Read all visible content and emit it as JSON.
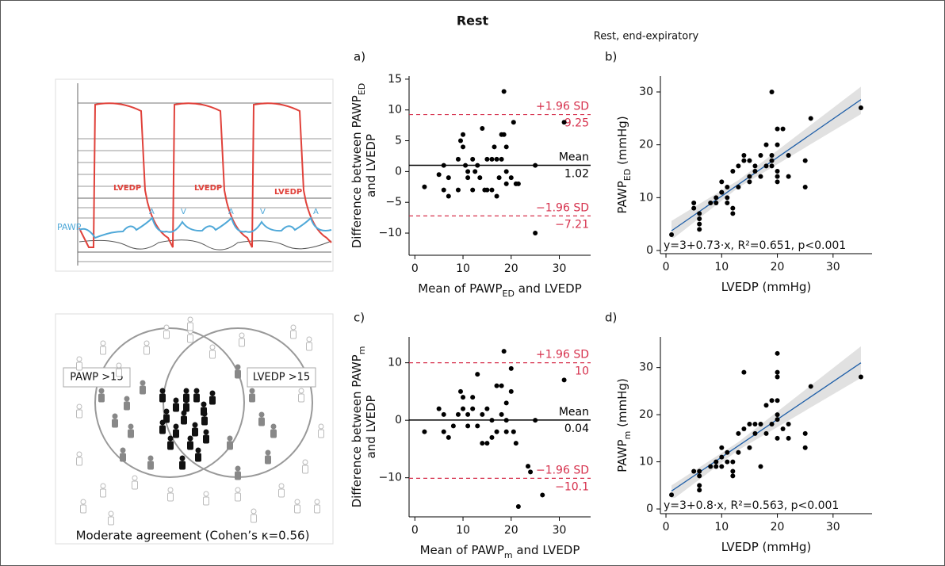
{
  "figure": {
    "title": "Rest",
    "subtitle": "Rest, end-expiratory"
  },
  "tracing": {
    "pawp_label": "PAWP",
    "lvedp_label": "LVEDP",
    "a_label": "A",
    "v_label": "V"
  },
  "venn": {
    "left_label": "PAWP >15",
    "right_label": "LVEDP >15",
    "caption": "Moderate agreement (Cohen’s κ=0.56)"
  },
  "chart_data": [
    {
      "type": "scatter",
      "panel_label": "a)",
      "xlabel": [
        [
          "Mean of PAWP",
          "ED",
          " and LVEDP"
        ]
      ],
      "ylabel": [
        [
          "Difference between PAWP",
          "ED"
        ],
        [
          "and LVEDP"
        ]
      ],
      "xlim": [
        -1.2,
        36.5
      ],
      "ylim": [
        -13.6,
        15.5
      ],
      "xticks": [
        0,
        10,
        20,
        30
      ],
      "yticks": [
        {
          "value": -10,
          "label": "−10"
        },
        {
          "value": -5,
          "label": "−5"
        },
        0,
        5,
        10,
        15
      ],
      "color": "#000000",
      "x": [
        2,
        5,
        6,
        6,
        7,
        7,
        9,
        9,
        9.5,
        10,
        10,
        10.5,
        11,
        11,
        12,
        12,
        12.5,
        13,
        13.5,
        14,
        14.5,
        15,
        15,
        16,
        16,
        16.5,
        17,
        17,
        17.5,
        18,
        18,
        18.5,
        18.5,
        19,
        19,
        19,
        20,
        20.5,
        21,
        21.5,
        25,
        25,
        31
      ],
      "values": [
        -2.5,
        -0.5,
        1,
        -3,
        -4,
        -1,
        2,
        -3,
        5,
        6,
        4,
        1,
        -1,
        0,
        2,
        -3,
        0,
        1,
        -1,
        7,
        -3,
        2,
        -3,
        2,
        -3,
        4,
        2,
        -4,
        -1,
        2,
        6,
        6,
        13,
        4,
        0,
        -2,
        -1,
        8,
        -2,
        -2,
        1,
        -10,
        8
      ],
      "reference_lines": [
        {
          "name": "+1.96 SD",
          "value": 9.25,
          "value_label": "9.25",
          "color": "#d6304c",
          "dashed": true
        },
        {
          "name": "Mean",
          "value": 1.02,
          "value_label": "1.02",
          "color": "#000000",
          "dashed": false
        },
        {
          "name": "−1.96 SD",
          "value": -7.21,
          "value_label": "−7.21",
          "color": "#d6304c",
          "dashed": true
        }
      ]
    },
    {
      "type": "scatter",
      "panel_label": "b)",
      "xlabel": [
        [
          "LVEDP (mmHg)"
        ]
      ],
      "ylabel": [
        [
          "PAWP",
          "ED",
          " (mmHg)"
        ]
      ],
      "xlim": [
        -1,
        37
      ],
      "ylim": [
        -0.6,
        33
      ],
      "xticks": [
        0,
        10,
        20,
        30
      ],
      "yticks": [
        0,
        10,
        20,
        30
      ],
      "color": "#000000",
      "x": [
        1,
        5,
        5,
        6,
        6,
        6,
        6,
        8,
        9,
        9,
        10,
        10,
        10,
        11,
        11,
        11,
        12,
        12,
        12,
        13,
        13,
        14,
        14,
        15,
        15,
        15,
        16,
        16,
        17,
        17,
        18,
        18,
        19,
        19,
        19,
        19,
        20,
        20,
        20,
        20,
        20,
        21,
        22,
        22,
        25,
        25,
        26,
        35
      ],
      "values": [
        3,
        8,
        9,
        7,
        5,
        4,
        6,
        9,
        9,
        10,
        13,
        11,
        11,
        9,
        10,
        12,
        15,
        8,
        7,
        12,
        16,
        18,
        17,
        13,
        14,
        17,
        15,
        16,
        14,
        18,
        20,
        16,
        30,
        17,
        16,
        18,
        23,
        20,
        15,
        14,
        13,
        23,
        18,
        14,
        17,
        12,
        25,
        27
      ],
      "fit_intercept": 3,
      "fit_slope": 0.73,
      "fit_color": "#1f5fa8",
      "ci_band": {
        "x": [
          1,
          13,
          35
        ],
        "lower": [
          2,
          11.9,
          25.8
        ],
        "upper": [
          5.6,
          13.3,
          31
        ],
        "color": "#d9d9d9"
      },
      "annotation": "y=3+0.73·x, R²=0.651, p<0.001"
    },
    {
      "type": "scatter",
      "panel_label": "c)",
      "xlabel": [
        [
          "Mean of PAWP",
          "m",
          " and LVEDP"
        ]
      ],
      "ylabel": [
        [
          "Difference between PAWP",
          "m"
        ],
        [
          "and LVEDP"
        ]
      ],
      "xlim": [
        -1.2,
        36.5
      ],
      "ylim": [
        -16.8,
        14.5
      ],
      "xticks": [
        0,
        10,
        20,
        30
      ],
      "yticks": [
        {
          "value": -10,
          "label": "−10"
        },
        0,
        10
      ],
      "color": "#000000",
      "x": [
        2,
        5,
        6,
        6,
        7,
        8,
        9,
        9.5,
        10,
        10,
        11,
        11,
        12,
        12,
        13,
        13,
        14,
        14,
        15,
        15,
        16,
        16,
        17,
        17,
        18,
        18,
        18.5,
        19,
        19,
        19,
        20,
        20,
        20.5,
        21,
        21.5,
        23.5,
        24,
        25,
        26.5,
        31
      ],
      "values": [
        -2,
        2,
        1,
        -2,
        -3,
        -1,
        1,
        5,
        4,
        2,
        -1,
        1,
        4,
        2,
        8,
        -1,
        -4,
        1,
        -4,
        2,
        0,
        -3,
        6,
        -2,
        6,
        1,
        12,
        3,
        0,
        -2,
        5,
        9,
        -2,
        -4,
        -15,
        -8,
        -9,
        0,
        -13,
        7
      ],
      "reference_lines": [
        {
          "name": "+1.96 SD",
          "value": 10,
          "value_label": "10",
          "color": "#d6304c",
          "dashed": true
        },
        {
          "name": "Mean",
          "value": 0.04,
          "value_label": "0.04",
          "color": "#000000",
          "dashed": false
        },
        {
          "name": "−1.96 SD",
          "value": -10.1,
          "value_label": "−10.1",
          "color": "#d6304c",
          "dashed": true
        }
      ]
    },
    {
      "type": "scatter",
      "panel_label": "d)",
      "xlabel": [
        [
          "LVEDP (mmHg)"
        ]
      ],
      "ylabel": [
        [
          "PAWP",
          "m",
          " (mmHg)"
        ]
      ],
      "xlim": [
        -1,
        37
      ],
      "ylim": [
        -1,
        36.5
      ],
      "xticks": [
        0,
        10,
        20,
        30
      ],
      "yticks": [
        0,
        10,
        20,
        30
      ],
      "color": "#000000",
      "x": [
        1,
        5,
        6,
        6,
        6,
        6,
        8,
        9,
        9,
        10,
        10,
        10,
        11,
        11,
        12,
        12,
        12,
        13,
        13,
        14,
        14,
        15,
        15,
        16,
        16,
        17,
        17,
        18,
        18,
        19,
        19,
        20,
        20,
        20,
        20,
        20,
        20,
        20,
        21,
        22,
        22,
        25,
        25,
        26,
        35
      ],
      "values": [
        3,
        8,
        7,
        5,
        4,
        8,
        9,
        9,
        10,
        13,
        11,
        9,
        10,
        12,
        10,
        8,
        7,
        12,
        16,
        29,
        17,
        13,
        18,
        16,
        18,
        9,
        18,
        22,
        16,
        23,
        18,
        33,
        29,
        28,
        23,
        20,
        19,
        15,
        17,
        18,
        15,
        16,
        13,
        26,
        28
      ],
      "fit_intercept": 3,
      "fit_slope": 0.8,
      "fit_color": "#1f5fa8",
      "ci_band": {
        "x": [
          1,
          13,
          35
        ],
        "lower": [
          1.8,
          12.5,
          27.8
        ],
        "upper": [
          5,
          14.2,
          34.5
        ],
        "color": "#d9d9d9"
      },
      "annotation": "y=3+0.8·x, R²=0.563, p<0.001"
    }
  ]
}
